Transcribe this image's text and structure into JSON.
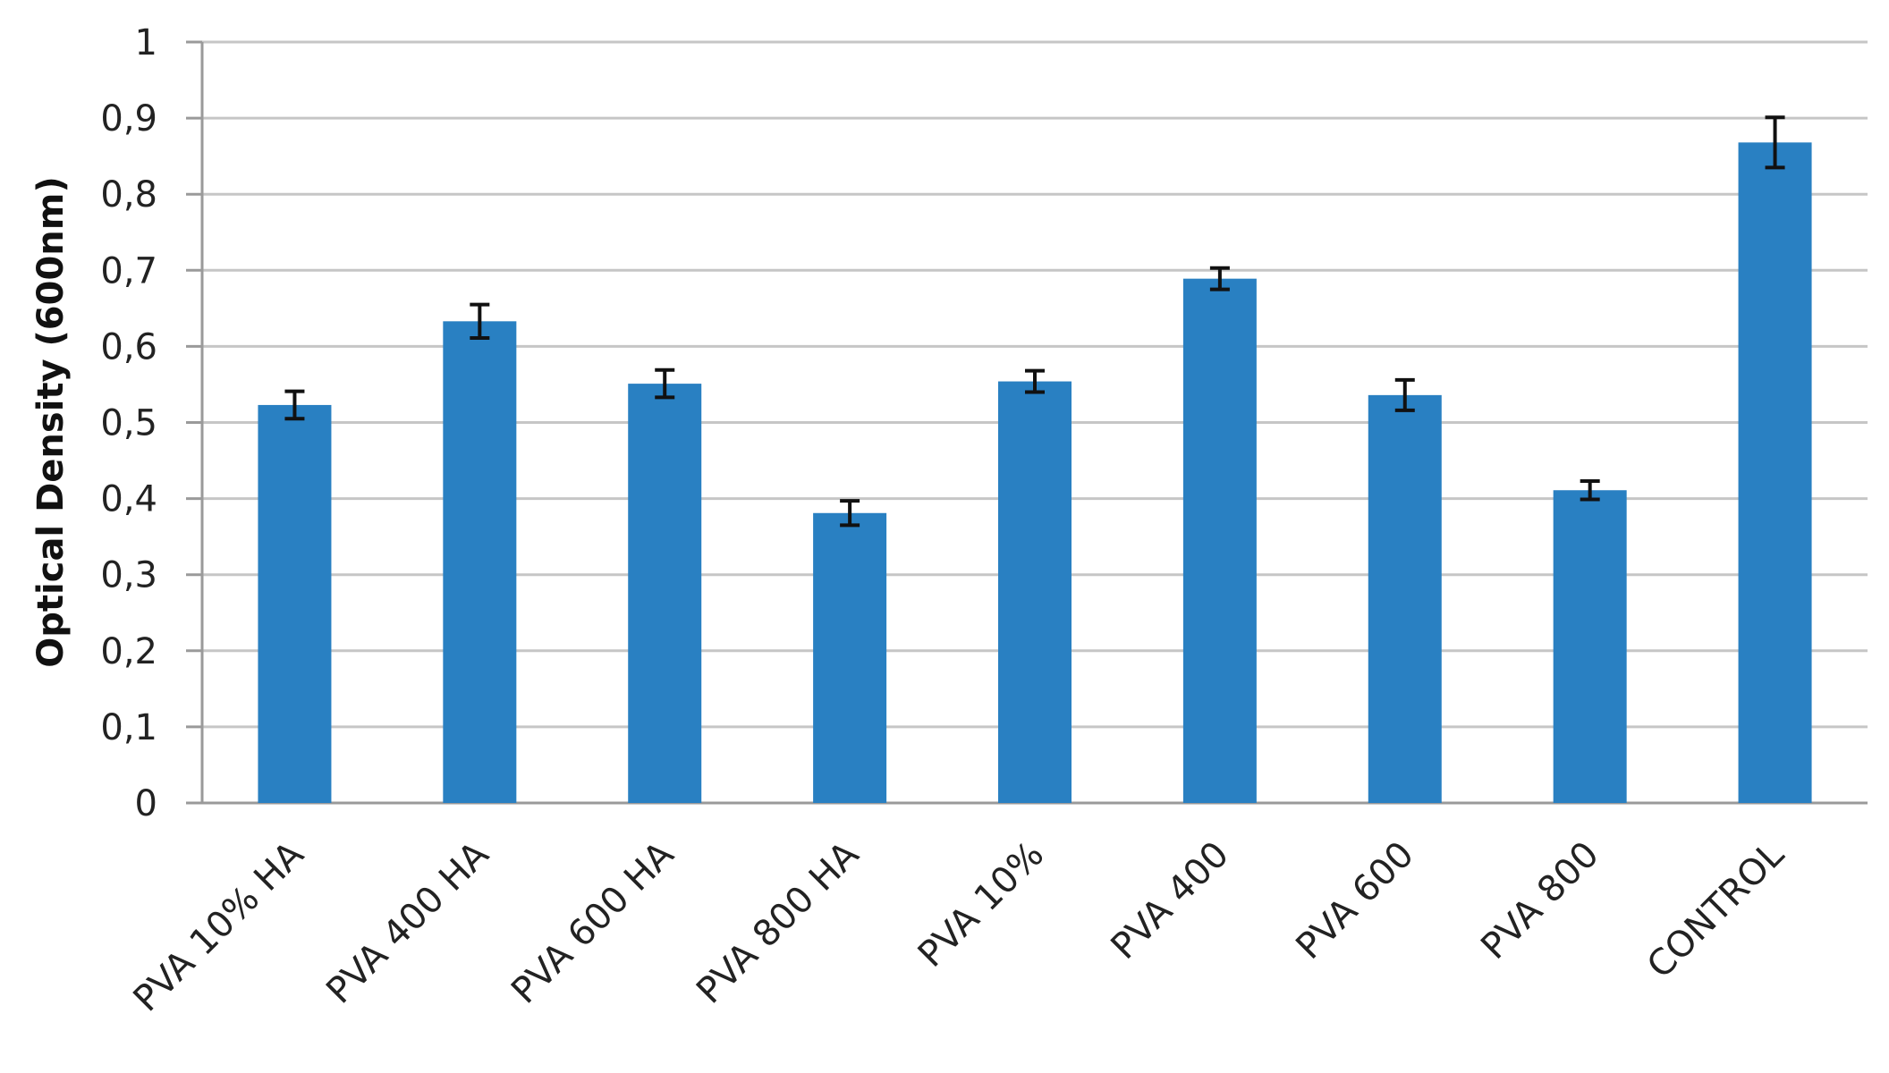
{
  "chart_data": {
    "type": "bar",
    "title": "",
    "xlabel": "",
    "ylabel": "Optical  Density (600nm)",
    "ylim": [
      0,
      1
    ],
    "yticks": [
      0,
      0.1,
      0.2,
      0.3,
      0.4,
      0.5,
      0.6,
      0.7,
      0.8,
      0.9,
      1
    ],
    "ytick_labels": [
      "0",
      "0,1",
      "0,2",
      "0,3",
      "0,4",
      "0,5",
      "0,6",
      "0,7",
      "0,8",
      "0,9",
      "1"
    ],
    "categories": [
      "PVA 10% HA",
      "PVA 400  HA",
      "PVA 600  HA",
      "PVA  800  HA",
      "PVA 10%",
      "PVA  400",
      "PVA  600",
      "PVA  800",
      "CONTROL"
    ],
    "values": [
      0.523,
      0.633,
      0.551,
      0.381,
      0.554,
      0.689,
      0.536,
      0.411,
      0.868
    ],
    "errors": [
      0.018,
      0.022,
      0.018,
      0.016,
      0.014,
      0.014,
      0.02,
      0.012,
      0.033
    ],
    "grid": true,
    "legend": "none",
    "bar_color": "#2980C2"
  }
}
